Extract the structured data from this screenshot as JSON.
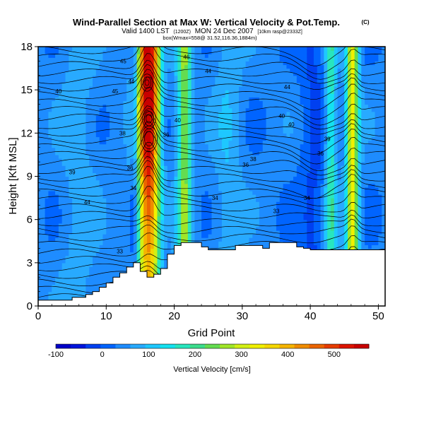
{
  "chart_data": {
    "type": "heatmap",
    "title": "Wind-Parallel Section at Max W: Vertical Velocity & Pot.Temp.",
    "copyright": "(C)",
    "subtitle_line1_main": "Valid 1400 LST",
    "subtitle_line1_init": "(1200Z)",
    "subtitle_line1_date": "MON 24 Dec 2007",
    "subtitle_line1_run": "[10km rasp@2333Z]",
    "subtitle_line2": "box(Wmax=558@ 31.52,116.36,1884m)",
    "xlabel": "Grid Point",
    "ylabel": "Height [Kft MSL]",
    "xlim": [
      0,
      51
    ],
    "ylim": [
      0,
      18
    ],
    "xticks": [
      "0",
      "10",
      "20",
      "30",
      "40",
      "50"
    ],
    "yticks": [
      "0",
      "3",
      "6",
      "9",
      "12",
      "15",
      "18"
    ],
    "colorbar": {
      "label": "Vertical Velocity [cm/s]",
      "ticks": [
        "-100",
        "0",
        "100",
        "200",
        "300",
        "400",
        "500"
      ],
      "range": [
        -100,
        575
      ]
    },
    "terrain_top_kft": [
      0.4,
      0.4,
      0.4,
      0.4,
      0.4,
      0.6,
      0.6,
      0.8,
      1.0,
      1.3,
      1.6,
      2.0,
      2.3,
      2.7,
      3.0,
      2.4,
      2.0,
      2.2,
      2.6,
      3.6,
      4.2,
      4.4,
      4.4,
      4.4,
      4.1,
      3.9,
      3.9,
      3.9,
      3.9,
      4.2,
      4.2,
      4.2,
      4.2,
      4.0,
      4.4,
      4.4,
      4.4,
      4.4,
      4.1,
      4.0,
      3.9,
      3.9,
      3.9,
      3.9,
      3.9,
      3.9,
      3.9,
      3.9,
      3.9,
      3.9,
      3.9,
      3.9
    ],
    "w_features": [
      {
        "x": 16.2,
        "width": 1.7,
        "peak": 560
      },
      {
        "x": 21.5,
        "width": 1.0,
        "peak": 220
      },
      {
        "x": 46.2,
        "width": 0.9,
        "peak": 290
      },
      {
        "x": 43.0,
        "width": 0.8,
        "peak": 150
      },
      {
        "x": 14.2,
        "width": 0.6,
        "peak": -90
      },
      {
        "x": 18.5,
        "width": 0.8,
        "peak": -30
      },
      {
        "x": 40.5,
        "width": 2.0,
        "peak": -50
      },
      {
        "x": 6.0,
        "width": 2.5,
        "peak": 40
      },
      {
        "x": 28.0,
        "width": 2.0,
        "peak": 50
      }
    ],
    "theta_labels": [
      {
        "text": "44",
        "x": 13.7,
        "y": 15.6
      },
      {
        "text": "40",
        "x": 3.0,
        "y": 14.9
      },
      {
        "text": "45",
        "x": 11.3,
        "y": 14.9
      },
      {
        "text": "40",
        "x": 20.5,
        "y": 12.9
      },
      {
        "text": "38",
        "x": 12.4,
        "y": 12.0
      },
      {
        "text": "36",
        "x": 18.8,
        "y": 11.9
      },
      {
        "text": "38",
        "x": 31.6,
        "y": 10.2
      },
      {
        "text": "36",
        "x": 30.5,
        "y": 9.8
      },
      {
        "text": "34",
        "x": 39.5,
        "y": 7.5
      },
      {
        "text": "34",
        "x": 26.0,
        "y": 7.5
      },
      {
        "text": "33",
        "x": 35.0,
        "y": 6.6
      },
      {
        "text": "39",
        "x": 5.0,
        "y": 9.3
      },
      {
        "text": "44",
        "x": 7.2,
        "y": 7.2
      },
      {
        "text": "33",
        "x": 12.0,
        "y": 3.8
      },
      {
        "text": "36",
        "x": 13.5,
        "y": 9.6
      },
      {
        "text": "34",
        "x": 14.0,
        "y": 8.2
      },
      {
        "text": "40",
        "x": 37.2,
        "y": 12.6
      },
      {
        "text": "40",
        "x": 35.8,
        "y": 13.2
      },
      {
        "text": "39",
        "x": 42.5,
        "y": 11.6
      },
      {
        "text": "36",
        "x": 41.5,
        "y": 10.6
      },
      {
        "text": "44",
        "x": 36.6,
        "y": 15.2
      },
      {
        "text": "44",
        "x": 25.0,
        "y": 16.3
      },
      {
        "text": "46",
        "x": 21.8,
        "y": 17.3
      },
      {
        "text": "45",
        "x": 12.5,
        "y": 17.0
      }
    ]
  }
}
